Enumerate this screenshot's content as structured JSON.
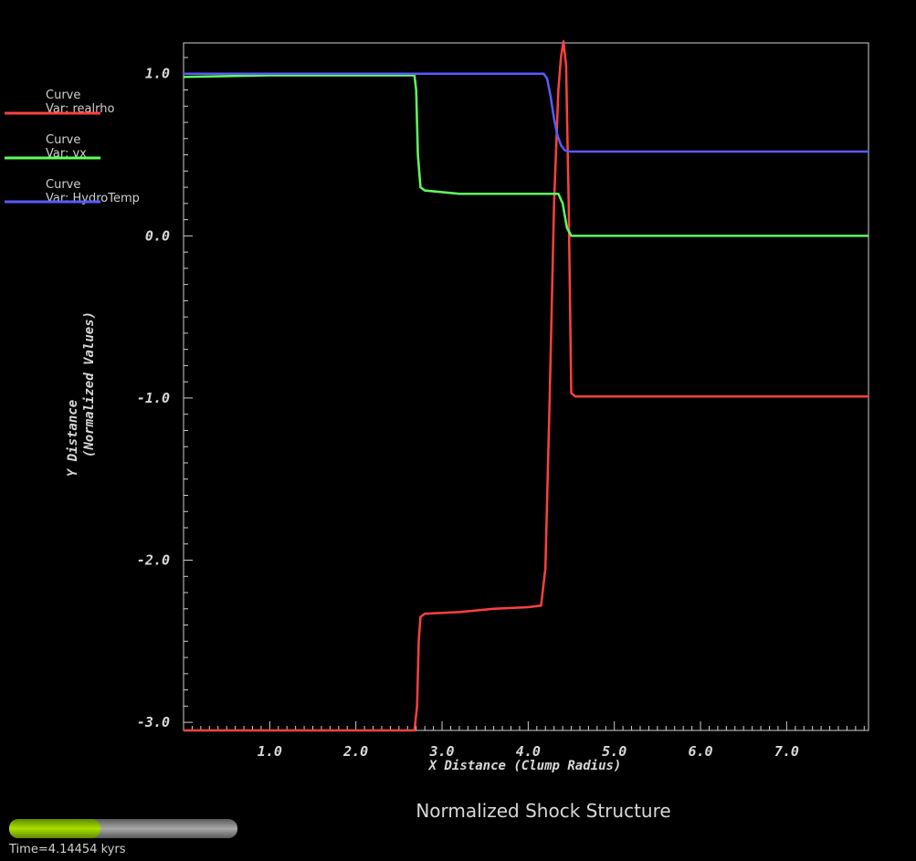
{
  "chart_data": {
    "type": "line",
    "title": "Normalized Shock Structure",
    "xlabel": "X Distance (Clump Radius)",
    "ylabel_lines": [
      "Y Distance",
      "(Normalized Values)"
    ],
    "xlim": [
      0.0,
      7.95
    ],
    "ylim": [
      -3.05,
      1.19
    ],
    "x_ticks": [
      1.0,
      2.0,
      3.0,
      4.0,
      5.0,
      6.0,
      7.0
    ],
    "x_tick_labels": [
      "1.0",
      "2.0",
      "3.0",
      "4.0",
      "5.0",
      "6.0",
      "7.0"
    ],
    "y_ticks": [
      1.0,
      0.0,
      -1.0,
      -2.0,
      -3.0
    ],
    "y_tick_labels": [
      "1.0",
      "0.0",
      "-1.0",
      "-2.0",
      "-3.0"
    ],
    "legend_position": "left",
    "series": [
      {
        "name": "Curve",
        "var_label": "Var: realrho",
        "color": "#ff4040",
        "x": [
          0.0,
          1.0,
          2.0,
          2.68,
          2.71,
          2.73,
          2.75,
          2.8,
          3.2,
          3.6,
          4.0,
          4.15,
          4.2,
          4.25,
          4.3,
          4.35,
          4.38,
          4.41,
          4.44,
          4.47,
          4.5,
          4.55,
          5.0,
          6.0,
          7.0,
          7.95
        ],
        "y": [
          -3.05,
          -3.05,
          -3.05,
          -3.05,
          -2.9,
          -2.5,
          -2.35,
          -2.33,
          -2.32,
          -2.3,
          -2.29,
          -2.28,
          -2.05,
          -1.0,
          0.2,
          0.9,
          1.1,
          1.2,
          1.05,
          0.2,
          -0.97,
          -0.99,
          -0.99,
          -0.99,
          -0.99,
          -0.99
        ]
      },
      {
        "name": "Curve",
        "var_label": "Var: vx",
        "color": "#60ff60",
        "x": [
          0.0,
          1.0,
          2.0,
          2.68,
          2.7,
          2.72,
          2.75,
          2.8,
          3.2,
          3.6,
          4.0,
          4.2,
          4.35,
          4.4,
          4.45,
          4.5,
          5.0,
          6.0,
          7.0,
          7.95
        ],
        "y": [
          0.98,
          0.99,
          0.99,
          0.99,
          0.9,
          0.5,
          0.3,
          0.28,
          0.26,
          0.26,
          0.26,
          0.26,
          0.26,
          0.2,
          0.05,
          0.0,
          0.0,
          0.0,
          0.0,
          0.0
        ]
      },
      {
        "name": "Curve",
        "var_label": "Var: HydroTemp",
        "color": "#5a5aff",
        "x": [
          0.0,
          1.0,
          2.0,
          3.0,
          4.0,
          4.18,
          4.22,
          4.26,
          4.3,
          4.34,
          4.38,
          4.42,
          4.46,
          4.5,
          5.0,
          6.0,
          7.0,
          7.95
        ],
        "y": [
          1.0,
          1.0,
          1.0,
          1.0,
          1.0,
          1.0,
          0.97,
          0.86,
          0.72,
          0.62,
          0.56,
          0.53,
          0.52,
          0.52,
          0.52,
          0.52,
          0.52,
          0.52
        ]
      }
    ]
  },
  "progress": {
    "fraction": 0.4,
    "fill_color": "#8ec800",
    "track_color": "#888888",
    "time_label": "Time=4.14454 kyrs"
  }
}
